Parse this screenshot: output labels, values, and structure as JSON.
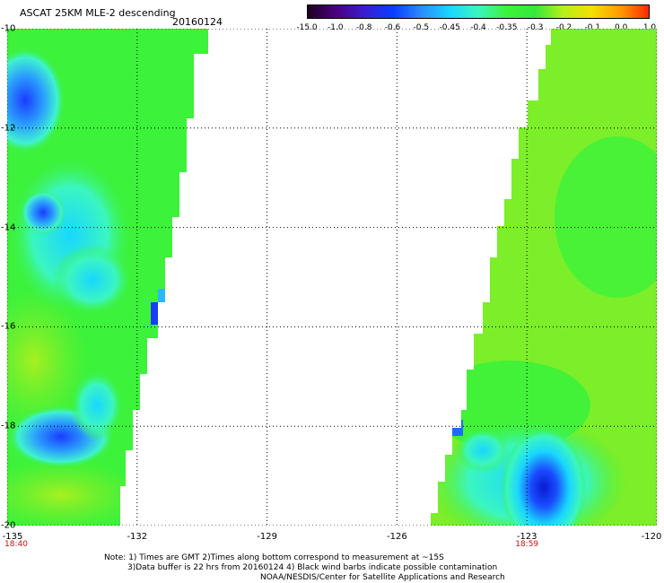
{
  "header": {
    "title": "ASCAT 25KM MLE-2 descending",
    "date": "20160124"
  },
  "colorbar": {
    "labels": [
      "-15.0",
      "-1.0",
      "-0.8",
      "-0.6",
      "-0.5",
      "-0.45",
      "-0.4",
      "-0.35",
      "-0.3",
      "-0.2",
      "-0.1",
      "0.0",
      "1.0"
    ],
    "colors": [
      "#200020",
      "#4a0080",
      "#3a1fd0",
      "#0a3cff",
      "#2a8cff",
      "#19d6ff",
      "#3bf6c0",
      "#3cf23a",
      "#35e83a",
      "#b8f01a",
      "#f4e000",
      "#ff9a00",
      "#ff2a00"
    ]
  },
  "axes": {
    "y_ticks": [
      "-10",
      "-12",
      "-14",
      "-16",
      "-18",
      "-20"
    ],
    "x_ticks": [
      "-135",
      "-132",
      "-129",
      "-126",
      "-123",
      "-120"
    ],
    "lat_range": [
      -20,
      -10
    ],
    "lon_range": [
      -135,
      -120
    ]
  },
  "times": [
    {
      "label": "18:40",
      "lon": -135
    },
    {
      "label": "18:59",
      "lon": -123
    }
  ],
  "notes": {
    "line1": "Note: 1) Times are GMT 2)Times along bottom correspond to measurement at ~15S",
    "line2": "3)Data buffer is 22 hrs from 20160124 4) Black wind barbs indicate possible contamination",
    "line3": "NOAA/NESDIS/Center for Satellite Applications and Research"
  }
}
